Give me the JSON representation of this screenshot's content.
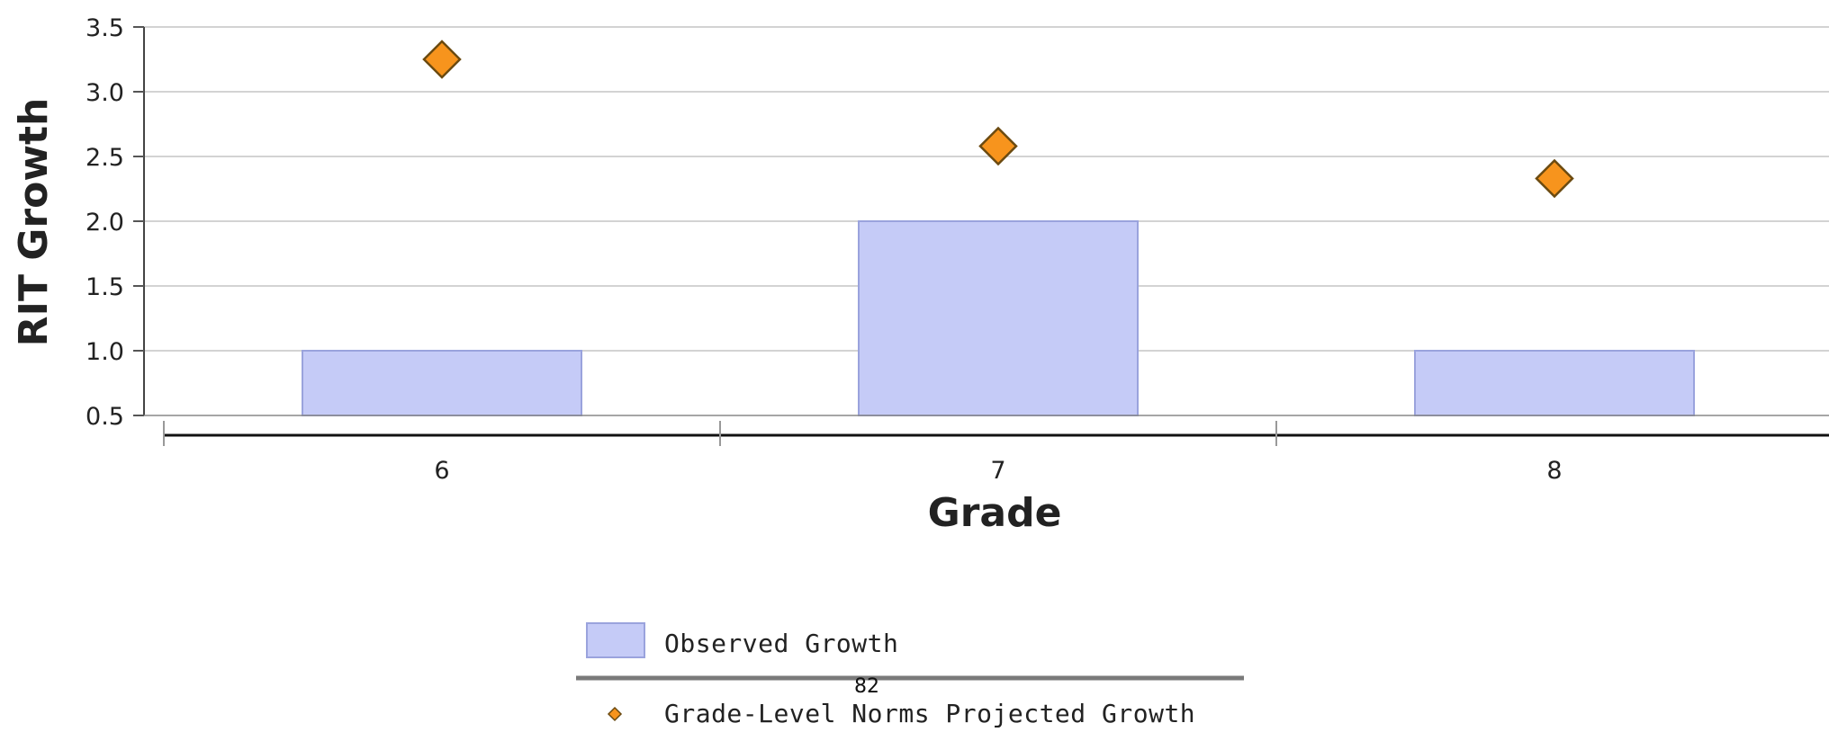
{
  "chart_data": {
    "type": "bar",
    "categories": [
      "6",
      "7",
      "8"
    ],
    "series": [
      {
        "name": "Observed Growth",
        "kind": "bar",
        "values": [
          1.0,
          2.0,
          1.0
        ],
        "color": "#c5cbf7",
        "stroke": "#9aa3dd"
      },
      {
        "name": "Grade-Level Norms Projected Growth",
        "kind": "scatter",
        "marker": "diamond",
        "values": [
          3.25,
          2.58,
          2.33
        ],
        "color": "#f7941d",
        "stroke": "#6b4a10"
      }
    ],
    "xlabel": "Grade",
    "ylabel": "RIT Growth",
    "ylim": [
      0.5,
      3.5
    ],
    "yticks": [
      "0.5",
      "1.0",
      "1.5",
      "2.0",
      "2.5",
      "3.0",
      "3.5"
    ],
    "grid": true,
    "legend_position": "bottom"
  },
  "page_number": "82"
}
